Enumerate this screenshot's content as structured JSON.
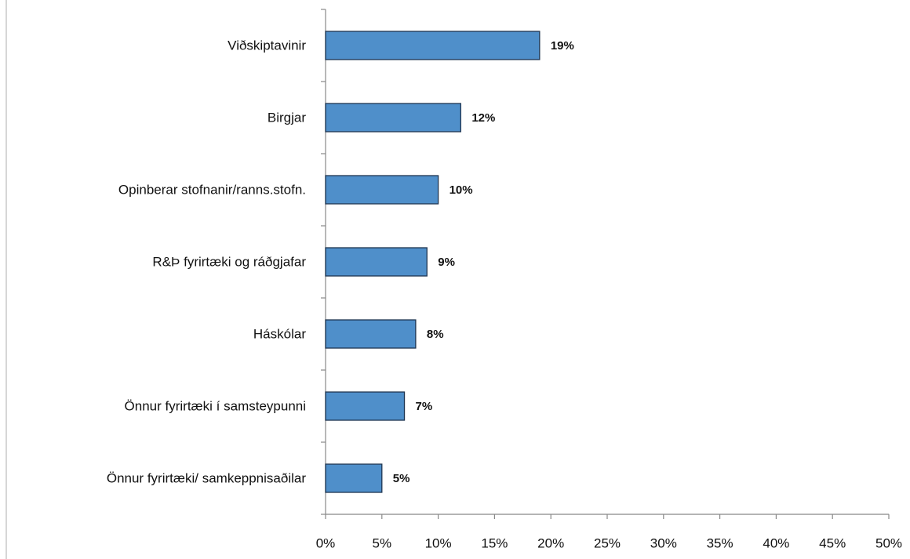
{
  "chart_data": {
    "type": "bar",
    "orientation": "horizontal",
    "categories": [
      "Viðskiptavinir",
      "Birgjar",
      "Opinberar stofnanir/ranns.stofn.",
      "R&Þ fyrirtæki og ráðgjafar",
      "Háskólar",
      "Önnur fyrirtæki í samsteypunni",
      "Önnur fyrirtæki/ samkeppnisaðilar"
    ],
    "values": [
      19,
      12,
      10,
      9,
      8,
      7,
      5
    ],
    "value_labels": [
      "19%",
      "12%",
      "10%",
      "9%",
      "8%",
      "7%",
      "5%"
    ],
    "color": "#4f8fca",
    "xlim": [
      0,
      50
    ],
    "xticks": [
      {
        "value": 0,
        "label": "0%"
      },
      {
        "value": 5,
        "label": "5%"
      },
      {
        "value": 10,
        "label": "10%"
      },
      {
        "value": 15,
        "label": "15%"
      },
      {
        "value": 20,
        "label": "20%"
      },
      {
        "value": 25,
        "label": "25%"
      },
      {
        "value": 30,
        "label": "30%"
      },
      {
        "value": 35,
        "label": "35%"
      },
      {
        "value": 40,
        "label": "40%"
      },
      {
        "value": 45,
        "label": "45%"
      },
      {
        "value": 50,
        "label": "50%"
      }
    ],
    "grid": false
  }
}
